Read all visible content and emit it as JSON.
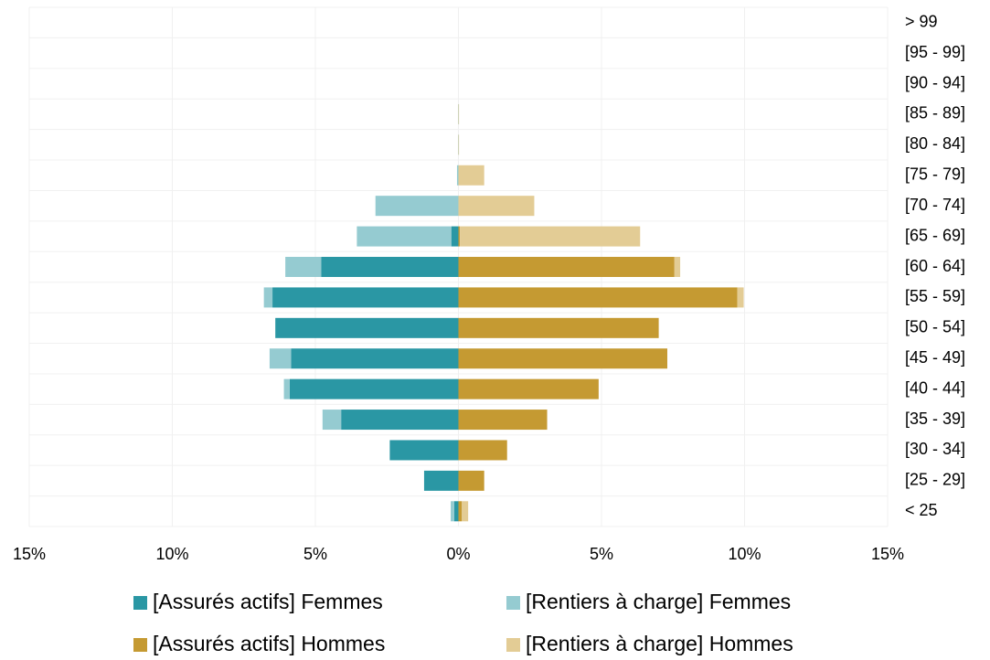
{
  "chart_data": {
    "type": "bar",
    "orientation": "horizontal",
    "stacked": true,
    "categories": [
      "< 25",
      "[25 - 29]",
      "[30 - 34]",
      "[35 - 39]",
      "[40 - 44]",
      "[45 - 49]",
      "[50 - 54]",
      "[55 - 59]",
      "[60 - 64]",
      "[65 - 69]",
      "[70 - 74]",
      "[75 - 79]",
      "[80 - 84]",
      "[85 - 89]",
      "[90 - 94]",
      "[95 - 99]",
      "> 99"
    ],
    "series": [
      {
        "name": "[Assurés actifs] Femmes",
        "color": "#2a97a4",
        "values": [
          -0.15,
          -1.2,
          -2.4,
          -4.1,
          -5.9,
          -5.85,
          -6.4,
          -6.5,
          -4.8,
          -0.25,
          0,
          0,
          0,
          0,
          0,
          0,
          0
        ]
      },
      {
        "name": "[Rentiers à charge] Femmes",
        "color": "#95cbd1",
        "values": [
          -0.12,
          0,
          0,
          -0.65,
          -0.2,
          -0.75,
          0,
          -0.3,
          -1.25,
          -3.3,
          -2.9,
          -0.05,
          -0.01,
          -0.01,
          0,
          0,
          0
        ]
      },
      {
        "name": "[Assurés actifs] Hommes",
        "color": "#c59a32",
        "values": [
          0.12,
          0.9,
          1.7,
          3.1,
          4.9,
          7.3,
          7.0,
          9.75,
          7.55,
          0.05,
          0,
          0,
          0,
          0,
          0,
          0,
          0
        ]
      },
      {
        "name": "[Rentiers à charge] Hommes",
        "color": "#e3cc95",
        "values": [
          0.22,
          0,
          0,
          0,
          0,
          0,
          0,
          0.22,
          0.2,
          6.3,
          2.65,
          0.9,
          0.02,
          0.02,
          0,
          0,
          0
        ]
      }
    ],
    "xlim": [
      -15,
      15
    ],
    "xticks": [
      {
        "value": -15,
        "label": "15%"
      },
      {
        "value": -10,
        "label": "10%"
      },
      {
        "value": -5,
        "label": "5%"
      },
      {
        "value": 0,
        "label": "0%"
      },
      {
        "value": 5,
        "label": "5%"
      },
      {
        "value": 10,
        "label": "10%"
      },
      {
        "value": 15,
        "label": "15%"
      }
    ],
    "grid": true,
    "legend": "bottom"
  }
}
